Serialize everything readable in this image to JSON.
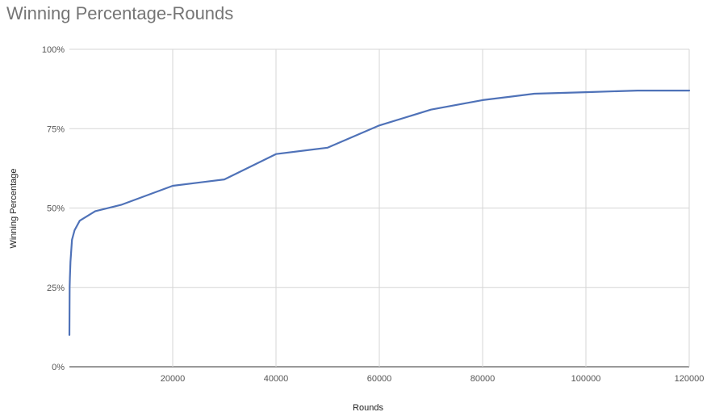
{
  "chart_data": {
    "type": "line",
    "title": "Winning Percentage-Rounds",
    "xlabel": "Rounds",
    "ylabel": "Winning Percentage",
    "xlim": [
      0,
      120000
    ],
    "ylim": [
      0,
      100
    ],
    "x_ticks": [
      20000,
      40000,
      60000,
      80000,
      100000,
      120000
    ],
    "y_ticks": [
      {
        "value": 0,
        "label": "0%"
      },
      {
        "value": 25,
        "label": "25%"
      },
      {
        "value": 50,
        "label": "50%"
      },
      {
        "value": 75,
        "label": "75%"
      },
      {
        "value": 100,
        "label": "100%"
      }
    ],
    "grid": true,
    "series": [
      {
        "color": "#4f72b8",
        "x": [
          0,
          50,
          100,
          200,
          500,
          1000,
          2000,
          5000,
          10000,
          20000,
          30000,
          40000,
          50000,
          60000,
          70000,
          80000,
          90000,
          100000,
          110000,
          120000
        ],
        "y": [
          10,
          25,
          28,
          33,
          40,
          43,
          46,
          49,
          51,
          57,
          59,
          67,
          69,
          76,
          81,
          84,
          86,
          86.5,
          87,
          87
        ]
      }
    ]
  }
}
